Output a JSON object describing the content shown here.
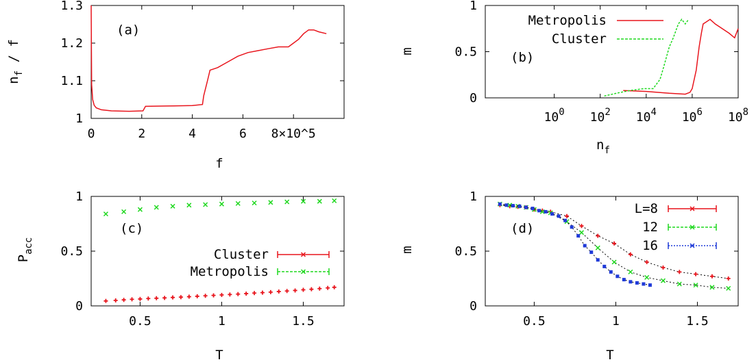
{
  "chart_data": [
    {
      "panel": "(a)",
      "type": "line",
      "xlabel": "f",
      "ylabel": "n_f / f",
      "xlim": [
        0,
        1000000
      ],
      "ylim": [
        1.0,
        1.3
      ],
      "x_ticks": [
        {
          "v": 0,
          "label": "0"
        },
        {
          "v": 200000,
          "label": "2"
        },
        {
          "v": 400000,
          "label": "4"
        },
        {
          "v": 600000,
          "label": "6"
        },
        {
          "v": 800000,
          "label": "8×10^5"
        }
      ],
      "y_ticks": [
        {
          "v": 1.0,
          "label": "1"
        },
        {
          "v": 1.1,
          "label": "1.1"
        },
        {
          "v": 1.2,
          "label": "1.2"
        },
        {
          "v": 1.3,
          "label": "1.3"
        }
      ],
      "series": [
        {
          "color": "#e8141c",
          "x": [
            0,
            2000,
            6000,
            12000,
            20000,
            40000,
            80000,
            150000,
            205000,
            215000,
            300000,
            400000,
            440000,
            445000,
            460000,
            470000,
            500000,
            540000,
            580000,
            620000,
            660000,
            700000,
            740000,
            780000,
            800000,
            820000,
            840000,
            860000,
            880000,
            900000,
            930000
          ],
          "y": [
            1.3,
            1.09,
            1.05,
            1.035,
            1.028,
            1.023,
            1.02,
            1.019,
            1.02,
            1.032,
            1.033,
            1.034,
            1.037,
            1.06,
            1.1,
            1.128,
            1.135,
            1.15,
            1.165,
            1.175,
            1.18,
            1.185,
            1.19,
            1.19,
            1.2,
            1.21,
            1.225,
            1.235,
            1.235,
            1.23,
            1.225
          ]
        }
      ]
    },
    {
      "panel": "(b)",
      "type": "line",
      "xlabel": "n_f",
      "ylabel": "m",
      "x_scale": "log",
      "xlim": [
        0.001,
        100000000
      ],
      "ylim": [
        0,
        1
      ],
      "x_ticks": [
        {
          "v": 1,
          "base": "10",
          "exp": "0"
        },
        {
          "v": 100,
          "base": "10",
          "exp": "2"
        },
        {
          "v": 10000,
          "base": "10",
          "exp": "4"
        },
        {
          "v": 1000000,
          "base": "10",
          "exp": "6"
        },
        {
          "v": 100000000,
          "base": "10",
          "exp": "8"
        }
      ],
      "y_ticks": [
        {
          "v": 0,
          "label": "0"
        },
        {
          "v": 0.5,
          "label": "0.5"
        },
        {
          "v": 1,
          "label": "1"
        }
      ],
      "legend": [
        "Metropolis",
        "Cluster"
      ],
      "legend_position": "top-left",
      "series": [
        {
          "name": "Metropolis",
          "color": "#e8141c",
          "x": [
            1000,
            10000,
            100000,
            500000,
            800000,
            1000000,
            1500000,
            2000000,
            2500000,
            3000000,
            4000000,
            6000000,
            10000000,
            20000000,
            40000000,
            70000000,
            100000000
          ],
          "y": [
            0.08,
            0.07,
            0.05,
            0.04,
            0.06,
            0.1,
            0.3,
            0.55,
            0.7,
            0.8,
            0.82,
            0.85,
            0.8,
            0.75,
            0.7,
            0.65,
            0.75
          ]
        },
        {
          "name": "Cluster",
          "color": "#1fd81f",
          "x": [
            150,
            500,
            2000,
            8000,
            20000,
            40000,
            60000,
            100000,
            150000,
            250000,
            350000,
            500000,
            700000
          ],
          "y": [
            0.02,
            0.05,
            0.08,
            0.1,
            0.1,
            0.2,
            0.35,
            0.55,
            0.65,
            0.8,
            0.85,
            0.8,
            0.85
          ]
        }
      ]
    },
    {
      "panel": "(c)",
      "type": "scatter",
      "xlabel": "T",
      "ylabel": "P_acc",
      "xlim": [
        0.2,
        1.75
      ],
      "ylim": [
        0,
        1
      ],
      "x_ticks": [
        {
          "v": 0.5,
          "label": "0.5"
        },
        {
          "v": 1,
          "label": "1"
        },
        {
          "v": 1.5,
          "label": "1.5"
        }
      ],
      "y_ticks": [
        {
          "v": 0,
          "label": "0"
        },
        {
          "v": 0.5,
          "label": "0.5"
        },
        {
          "v": 1,
          "label": "1"
        }
      ],
      "legend": [
        "Cluster",
        "Metropolis"
      ],
      "legend_position": "center-right",
      "series": [
        {
          "name": "Cluster",
          "color": "#e8141c",
          "marker": "plus",
          "x": [
            0.29,
            0.35,
            0.4,
            0.45,
            0.5,
            0.55,
            0.6,
            0.65,
            0.7,
            0.75,
            0.8,
            0.85,
            0.9,
            0.95,
            1.0,
            1.05,
            1.1,
            1.15,
            1.2,
            1.25,
            1.3,
            1.35,
            1.4,
            1.45,
            1.5,
            1.55,
            1.6,
            1.65,
            1.69
          ],
          "y": [
            0.045,
            0.05,
            0.055,
            0.06,
            0.063,
            0.067,
            0.07,
            0.073,
            0.077,
            0.08,
            0.084,
            0.088,
            0.092,
            0.096,
            0.1,
            0.104,
            0.108,
            0.112,
            0.117,
            0.121,
            0.126,
            0.131,
            0.136,
            0.141,
            0.147,
            0.152,
            0.158,
            0.164,
            0.17
          ]
        },
        {
          "name": "Metropolis",
          "color": "#1fd81f",
          "marker": "x",
          "x": [
            0.29,
            0.4,
            0.5,
            0.6,
            0.7,
            0.8,
            0.9,
            1.0,
            1.1,
            1.2,
            1.3,
            1.4,
            1.5,
            1.6,
            1.69
          ],
          "y": [
            0.84,
            0.86,
            0.88,
            0.9,
            0.91,
            0.92,
            0.925,
            0.93,
            0.935,
            0.94,
            0.945,
            0.95,
            0.955,
            0.955,
            0.96
          ]
        }
      ]
    },
    {
      "panel": "(d)",
      "type": "scatter",
      "xlabel": "T",
      "ylabel": "m",
      "xlim": [
        0.2,
        1.75
      ],
      "ylim": [
        0,
        1
      ],
      "x_ticks": [
        {
          "v": 0.5,
          "label": "0.5"
        },
        {
          "v": 1,
          "label": "1"
        },
        {
          "v": 1.5,
          "label": "1.5"
        }
      ],
      "y_ticks": [
        {
          "v": 0,
          "label": "0"
        },
        {
          "v": 0.5,
          "label": "0.5"
        },
        {
          "v": 1,
          "label": "1"
        }
      ],
      "legend": [
        "L=8",
        "12",
        "16"
      ],
      "legend_position": "top-right",
      "series": [
        {
          "name": "L=8",
          "color": "#e8141c",
          "x": [
            0.29,
            0.35,
            0.4,
            0.45,
            0.5,
            0.55,
            0.6,
            0.7,
            0.79,
            0.89,
            0.99,
            1.09,
            1.19,
            1.29,
            1.39,
            1.49,
            1.59,
            1.69
          ],
          "y": [
            0.92,
            0.91,
            0.905,
            0.9,
            0.88,
            0.87,
            0.86,
            0.82,
            0.73,
            0.64,
            0.57,
            0.47,
            0.4,
            0.35,
            0.31,
            0.29,
            0.27,
            0.25
          ]
        },
        {
          "name": "12",
          "color": "#1fd81f",
          "x": [
            0.29,
            0.35,
            0.4,
            0.45,
            0.5,
            0.55,
            0.6,
            0.7,
            0.79,
            0.89,
            0.99,
            1.09,
            1.19,
            1.29,
            1.39,
            1.49,
            1.59,
            1.69
          ],
          "y": [
            0.93,
            0.92,
            0.91,
            0.9,
            0.88,
            0.86,
            0.85,
            0.77,
            0.67,
            0.53,
            0.4,
            0.31,
            0.26,
            0.23,
            0.2,
            0.19,
            0.17,
            0.16
          ]
        },
        {
          "name": "16",
          "color": "#1f3ad8",
          "x": [
            0.29,
            0.33,
            0.37,
            0.41,
            0.45,
            0.49,
            0.53,
            0.57,
            0.61,
            0.65,
            0.69,
            0.73,
            0.77,
            0.81,
            0.85,
            0.89,
            0.93,
            0.97,
            1.01,
            1.05,
            1.09,
            1.13,
            1.17,
            1.21
          ],
          "y": [
            0.93,
            0.92,
            0.915,
            0.91,
            0.9,
            0.89,
            0.87,
            0.86,
            0.84,
            0.82,
            0.78,
            0.72,
            0.64,
            0.55,
            0.49,
            0.42,
            0.36,
            0.31,
            0.27,
            0.24,
            0.22,
            0.21,
            0.2,
            0.19
          ]
        }
      ]
    }
  ]
}
